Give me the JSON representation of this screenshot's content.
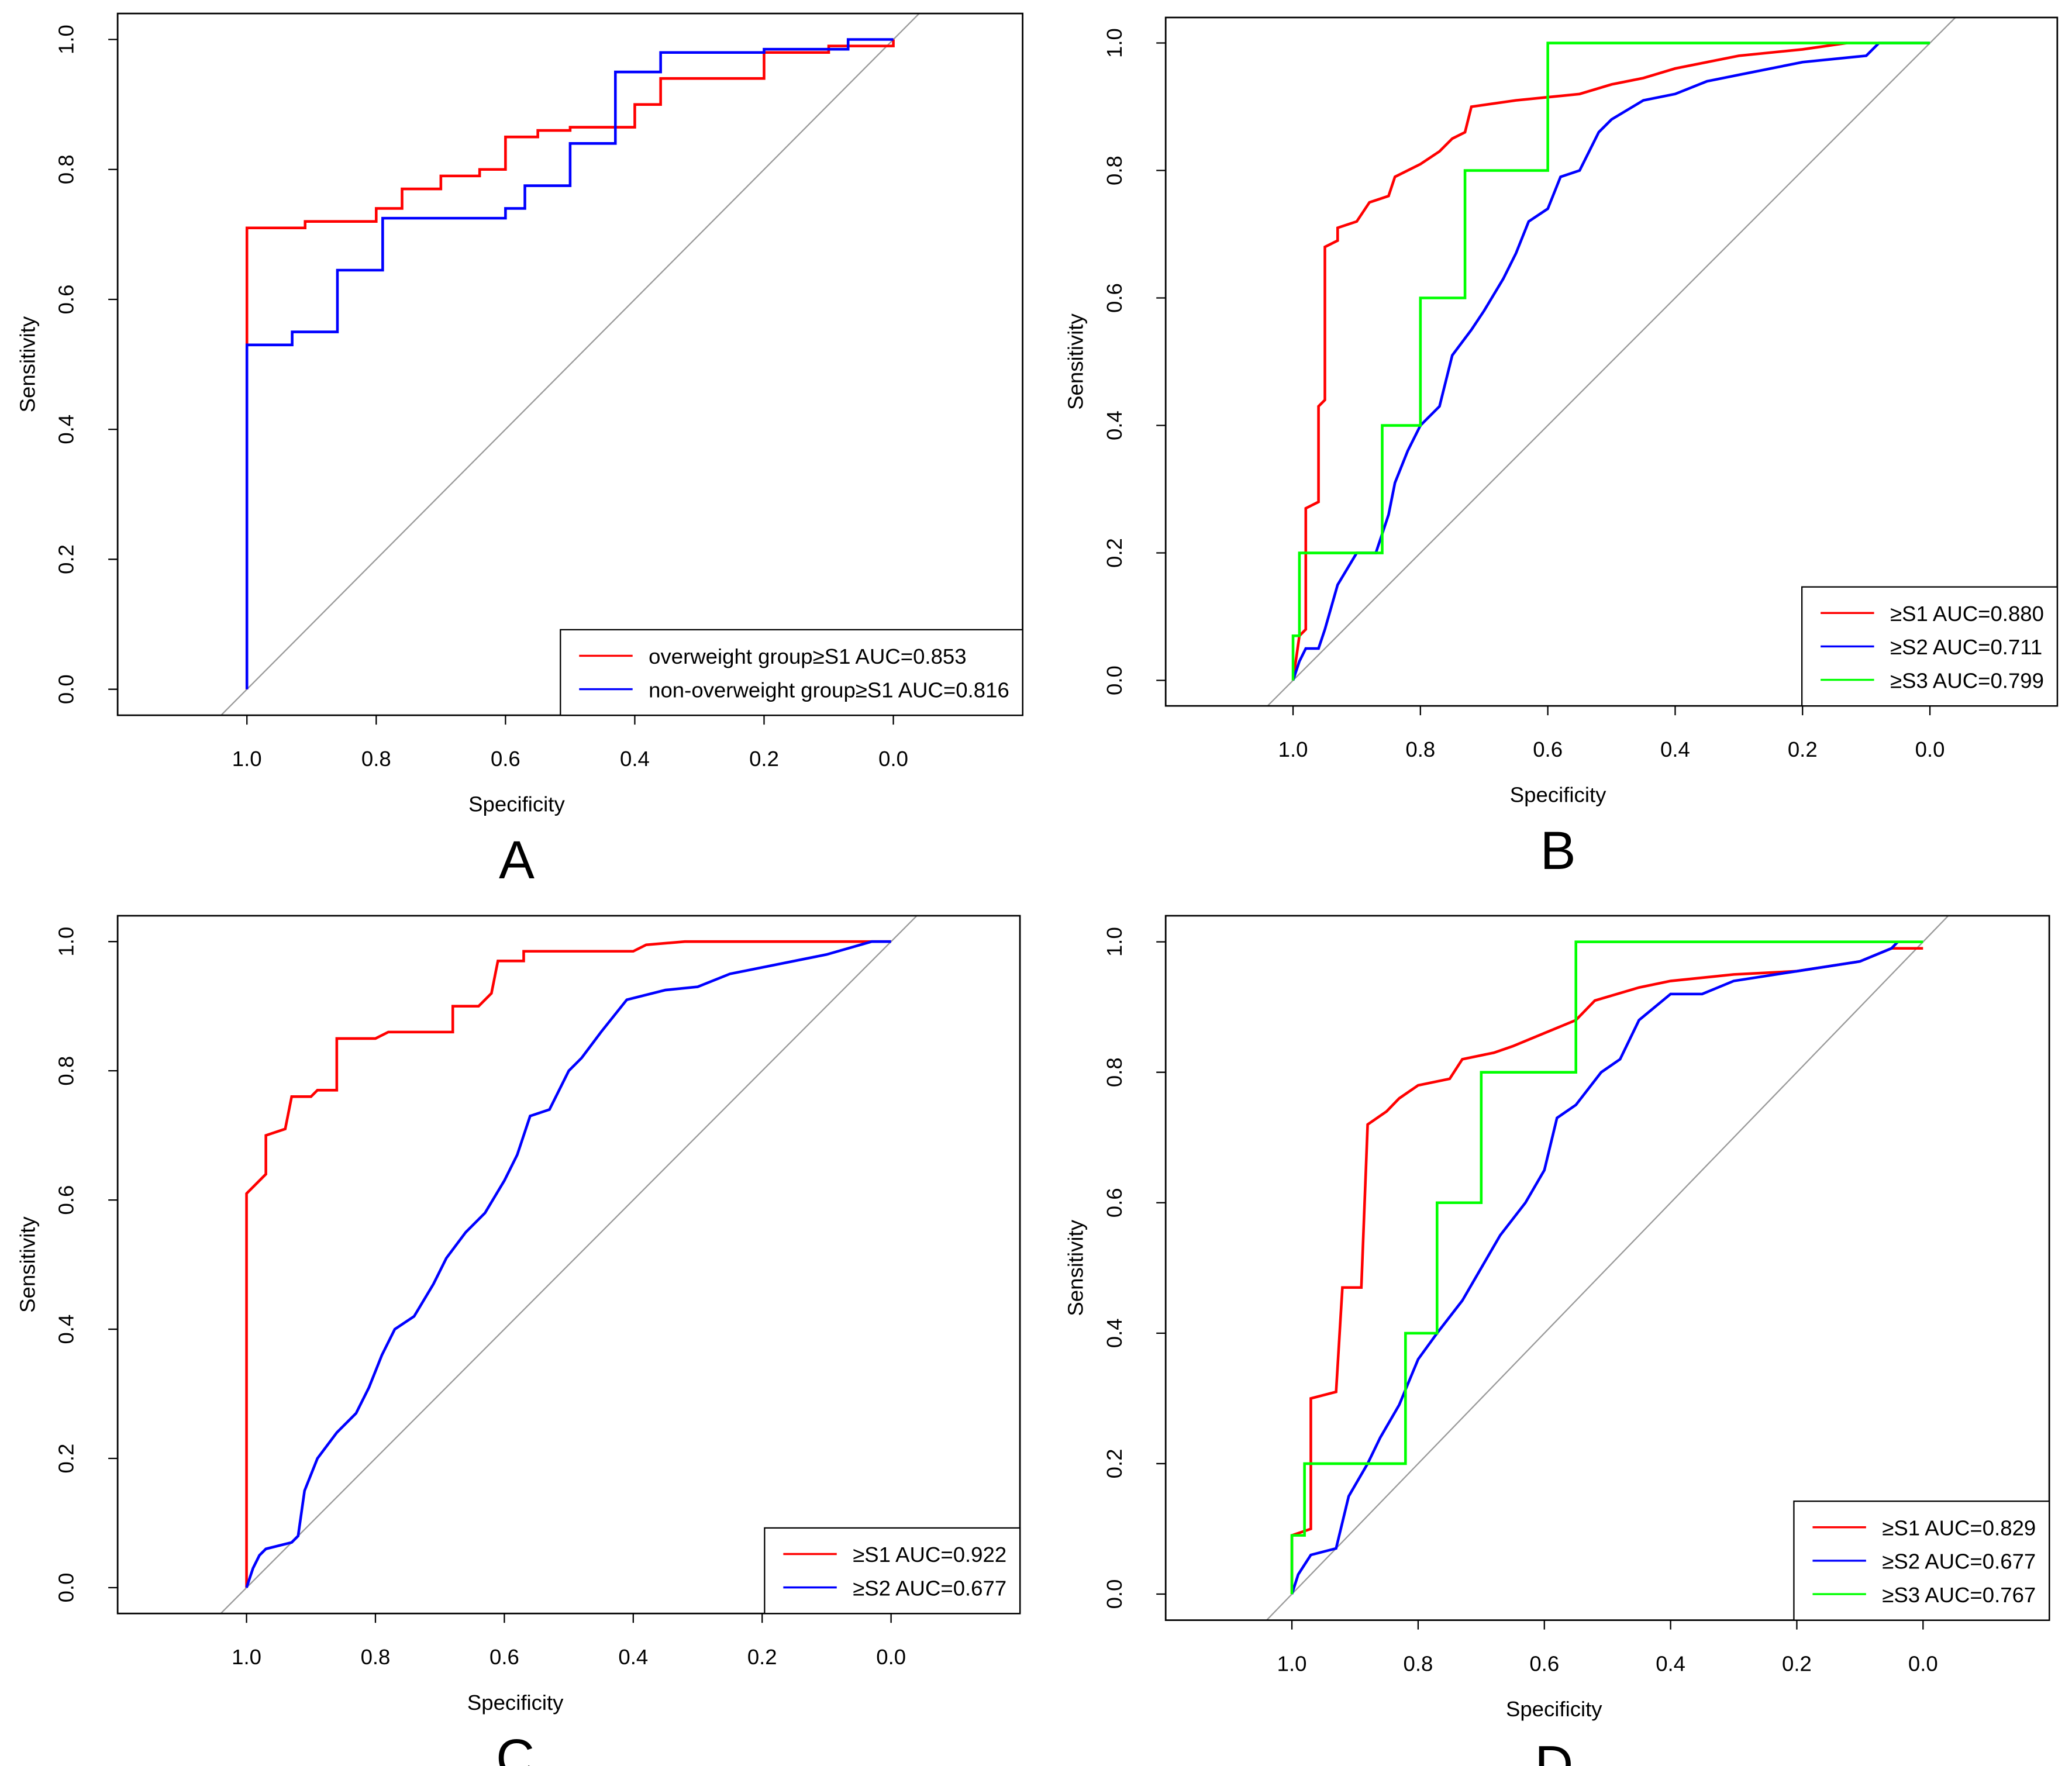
{
  "chart_data": [
    {
      "type": "line",
      "panel_label": "A",
      "xlabel": "Specificity",
      "ylabel": "Sensitivity",
      "xlim": [
        1.2,
        -0.2
      ],
      "ylim": [
        -0.04,
        1.04
      ],
      "xticks": [
        {
          "value": 1.0,
          "label": "1.0"
        },
        0.8,
        0.6,
        0.4,
        0.2,
        {
          "value": 0.0,
          "label": "0.0"
        }
      ],
      "yticks": [
        {
          "value": 0.0,
          "label": "0.0"
        },
        0.2,
        0.4,
        0.6,
        0.8,
        {
          "value": 1.0,
          "label": "1.0"
        }
      ],
      "legend": "bottom right",
      "series": [
        {
          "name": "overweight group≥S1 AUC=0.853",
          "color": "#ff0000",
          "x": [
            1,
            1,
            0.91,
            0.91,
            0.8,
            0.8,
            0.76,
            0.76,
            0.7,
            0.7,
            0.64,
            0.64,
            0.6,
            0.6,
            0.55,
            0.55,
            0.5,
            0.5,
            0.4,
            0.4,
            0.36,
            0.36,
            0.2,
            0.2,
            0.1,
            0.1,
            0,
            0
          ],
          "values": [
            0,
            0.71,
            0.71,
            0.72,
            0.72,
            0.74,
            0.74,
            0.77,
            0.77,
            0.79,
            0.79,
            0.8,
            0.8,
            0.85,
            0.85,
            0.86,
            0.86,
            0.865,
            0.865,
            0.9,
            0.9,
            0.94,
            0.94,
            0.98,
            0.98,
            0.99,
            0.99,
            1
          ]
        },
        {
          "name": "non-overweight group≥S1 AUC=0.816",
          "color": "#0000ff",
          "x": [
            1,
            1,
            0.93,
            0.93,
            0.86,
            0.86,
            0.79,
            0.79,
            0.6,
            0.6,
            0.57,
            0.57,
            0.5,
            0.5,
            0.43,
            0.43,
            0.36,
            0.36,
            0.2,
            0.2,
            0.07,
            0.07,
            0
          ],
          "values": [
            0,
            0.53,
            0.53,
            0.55,
            0.55,
            0.645,
            0.645,
            0.725,
            0.725,
            0.74,
            0.74,
            0.775,
            0.775,
            0.84,
            0.84,
            0.95,
            0.95,
            0.98,
            0.98,
            0.985,
            0.985,
            1,
            1
          ]
        }
      ]
    },
    {
      "type": "line",
      "panel_label": "B",
      "xlabel": "Specificity",
      "ylabel": "Sensitivity",
      "xlim": [
        1.2,
        -0.2
      ],
      "ylim": [
        -0.04,
        1.04
      ],
      "xticks": [
        {
          "value": 1.0,
          "label": "1.0"
        },
        0.8,
        0.6,
        0.4,
        0.2,
        {
          "value": 0.0,
          "label": "0.0"
        }
      ],
      "yticks": [
        {
          "value": 0.0,
          "label": "0.0"
        },
        0.2,
        0.4,
        0.6,
        0.8,
        {
          "value": 1.0,
          "label": "1.0"
        }
      ],
      "legend": "bottom right",
      "series": [
        {
          "name": "≥S1 AUC=0.880",
          "color": "#ff0000",
          "x": [
            1,
            0.99,
            0.98,
            0.98,
            0.96,
            0.96,
            0.95,
            0.95,
            0.93,
            0.93,
            0.9,
            0.88,
            0.85,
            0.84,
            0.8,
            0.77,
            0.75,
            0.73,
            0.72,
            0.65,
            0.6,
            0.55,
            0.5,
            0.45,
            0.4,
            0.35,
            0.3,
            0.2,
            0.13
          ],
          "values": [
            0,
            0.07,
            0.08,
            0.27,
            0.28,
            0.43,
            0.44,
            0.68,
            0.69,
            0.71,
            0.72,
            0.75,
            0.76,
            0.79,
            0.81,
            0.83,
            0.85,
            0.86,
            0.9,
            0.91,
            0.915,
            0.92,
            0.935,
            0.945,
            0.96,
            0.97,
            0.98,
            0.99,
            1
          ]
        },
        {
          "name": "≥S2 AUC=0.711",
          "color": "#0000ff",
          "x": [
            1,
            0.99,
            0.98,
            0.96,
            0.95,
            0.93,
            0.9,
            0.87,
            0.85,
            0.84,
            0.82,
            0.8,
            0.77,
            0.75,
            0.72,
            0.7,
            0.67,
            0.65,
            0.63,
            0.6,
            0.58,
            0.55,
            0.52,
            0.5,
            0.45,
            0.4,
            0.35,
            0.3,
            0.2,
            0.1,
            0.08,
            0
          ],
          "values": [
            0,
            0.03,
            0.05,
            0.05,
            0.08,
            0.15,
            0.2,
            0.2,
            0.26,
            0.31,
            0.36,
            0.4,
            0.43,
            0.51,
            0.55,
            0.58,
            0.63,
            0.67,
            0.72,
            0.74,
            0.79,
            0.8,
            0.86,
            0.88,
            0.91,
            0.92,
            0.94,
            0.95,
            0.97,
            0.98,
            1,
            1
          ]
        },
        {
          "name": "≥S3 AUC=0.799",
          "color": "#00ff00",
          "x": [
            1,
            1,
            0.99,
            0.99,
            0.86,
            0.86,
            0.8,
            0.8,
            0.73,
            0.73,
            0.6,
            0.6,
            0
          ],
          "values": [
            0,
            0.07,
            0.07,
            0.2,
            0.2,
            0.4,
            0.4,
            0.6,
            0.6,
            0.8,
            0.8,
            1,
            1
          ]
        }
      ]
    },
    {
      "type": "line",
      "panel_label": "C",
      "xlabel": "Specificity",
      "ylabel": "Sensitivity",
      "xlim": [
        1.2,
        -0.2
      ],
      "ylim": [
        -0.04,
        1.04
      ],
      "xticks": [
        {
          "value": 1.0,
          "label": "1.0"
        },
        0.8,
        0.6,
        0.4,
        0.2,
        {
          "value": 0.0,
          "label": "0.0"
        }
      ],
      "yticks": [
        {
          "value": 0.0,
          "label": "0.0"
        },
        0.2,
        0.4,
        0.6,
        0.8,
        {
          "value": 1.0,
          "label": "1.0"
        }
      ],
      "legend": "bottom right",
      "series": [
        {
          "name": "≥S1 AUC=0.922",
          "color": "#ff0000",
          "x": [
            1,
            1,
            0.97,
            0.97,
            0.94,
            0.93,
            0.9,
            0.89,
            0.86,
            0.86,
            0.8,
            0.78,
            0.68,
            0.68,
            0.64,
            0.62,
            0.61,
            0.57,
            0.57,
            0.4,
            0.38,
            0.32,
            0
          ],
          "values": [
            0,
            0.61,
            0.64,
            0.7,
            0.71,
            0.76,
            0.76,
            0.77,
            0.77,
            0.85,
            0.85,
            0.86,
            0.86,
            0.9,
            0.9,
            0.92,
            0.97,
            0.97,
            0.985,
            0.985,
            0.995,
            1,
            1
          ]
        },
        {
          "name": "≥S2 AUC=0.677",
          "color": "#0000ff",
          "x": [
            1,
            0.99,
            0.98,
            0.97,
            0.93,
            0.92,
            0.91,
            0.89,
            0.86,
            0.83,
            0.81,
            0.79,
            0.77,
            0.74,
            0.71,
            0.69,
            0.66,
            0.63,
            0.6,
            0.58,
            0.56,
            0.53,
            0.5,
            0.48,
            0.45,
            0.41,
            0.35,
            0.3,
            0.25,
            0.2,
            0.1,
            0.03,
            0
          ],
          "values": [
            0,
            0.03,
            0.05,
            0.06,
            0.07,
            0.08,
            0.15,
            0.2,
            0.24,
            0.27,
            0.31,
            0.36,
            0.4,
            0.42,
            0.47,
            0.51,
            0.55,
            0.58,
            0.63,
            0.67,
            0.73,
            0.74,
            0.8,
            0.82,
            0.86,
            0.91,
            0.925,
            0.93,
            0.95,
            0.96,
            0.98,
            1,
            1
          ]
        }
      ]
    },
    {
      "type": "line",
      "panel_label": "D",
      "xlabel": "Specificity",
      "ylabel": "Sensitivity",
      "xlim": [
        1.2,
        -0.2
      ],
      "ylim": [
        -0.04,
        1.04
      ],
      "xticks": [
        {
          "value": 1.0,
          "label": "1.0"
        },
        0.8,
        0.6,
        0.4,
        0.2,
        {
          "value": 0.0,
          "label": "0.0"
        }
      ],
      "yticks": [
        {
          "value": 0.0,
          "label": "0.0"
        },
        0.2,
        0.4,
        0.6,
        0.8,
        {
          "value": 1.0,
          "label": "1.0"
        }
      ],
      "legend": "bottom right",
      "series": [
        {
          "name": "≥S1 AUC=0.829",
          "color": "#ff0000",
          "x": [
            1,
            1,
            0.97,
            0.97,
            0.93,
            0.92,
            0.89,
            0.88,
            0.85,
            0.83,
            0.8,
            0.75,
            0.73,
            0.68,
            0.65,
            0.6,
            0.55,
            0.52,
            0.45,
            0.4,
            0.3,
            0.2,
            0.1,
            0.05,
            0
          ],
          "values": [
            0,
            0.09,
            0.1,
            0.3,
            0.31,
            0.47,
            0.47,
            0.72,
            0.74,
            0.76,
            0.78,
            0.79,
            0.82,
            0.83,
            0.84,
            0.86,
            0.88,
            0.91,
            0.93,
            0.94,
            0.95,
            0.955,
            0.97,
            0.99,
            0.99
          ]
        },
        {
          "name": "≥S2 AUC=0.677",
          "color": "#0000ff",
          "x": [
            1,
            0.99,
            0.97,
            0.93,
            0.91,
            0.88,
            0.86,
            0.83,
            0.8,
            0.77,
            0.73,
            0.7,
            0.67,
            0.63,
            0.6,
            0.58,
            0.55,
            0.51,
            0.48,
            0.45,
            0.4,
            0.35,
            0.3,
            0.2,
            0.1,
            0.05,
            0.04
          ],
          "values": [
            0,
            0.03,
            0.06,
            0.07,
            0.15,
            0.2,
            0.24,
            0.29,
            0.36,
            0.4,
            0.45,
            0.5,
            0.55,
            0.6,
            0.65,
            0.73,
            0.75,
            0.8,
            0.82,
            0.88,
            0.92,
            0.92,
            0.94,
            0.955,
            0.97,
            0.99,
            1
          ]
        },
        {
          "name": "≥S3 AUC=0.767",
          "color": "#00ff00",
          "x": [
            1,
            1,
            0.98,
            0.98,
            0.82,
            0.82,
            0.77,
            0.77,
            0.7,
            0.7,
            0.55,
            0.55,
            0
          ],
          "values": [
            0,
            0.09,
            0.09,
            0.2,
            0.2,
            0.4,
            0.4,
            0.6,
            0.6,
            0.8,
            0.8,
            1,
            1
          ]
        }
      ]
    }
  ]
}
